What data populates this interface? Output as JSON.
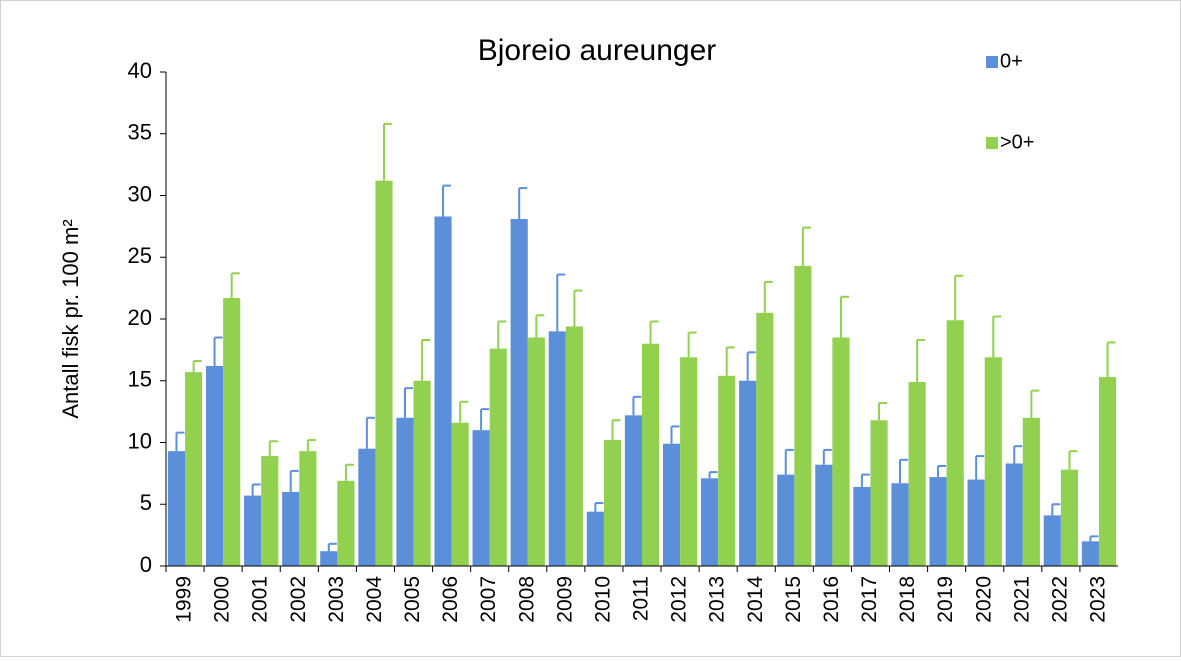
{
  "chart_data": {
    "type": "bar",
    "title": "Bjoreio aureunger",
    "y_label": "Antall fisk pr. 100 m²",
    "categories": [
      "1999",
      "2000",
      "2001",
      "2002",
      "2003",
      "2004",
      "2005",
      "2006",
      "2007",
      "2008",
      "2009",
      "2010",
      "2011",
      "2012",
      "2013",
      "2014",
      "2015",
      "2016",
      "2017",
      "2018",
      "2019",
      "2020",
      "2021",
      "2022",
      "2023"
    ],
    "series": [
      {
        "name": "0+",
        "color": "#5b8fd9",
        "values": [
          9.3,
          16.2,
          5.7,
          6.0,
          1.2,
          9.5,
          12.0,
          28.3,
          11.0,
          28.1,
          19.0,
          4.4,
          12.2,
          9.9,
          7.1,
          15.0,
          7.4,
          8.2,
          6.4,
          6.7,
          7.2,
          7.0,
          8.3,
          4.1,
          2.0
        ],
        "errors": [
          1.5,
          2.3,
          0.9,
          1.7,
          0.6,
          2.5,
          2.4,
          2.5,
          1.7,
          2.5,
          4.6,
          0.7,
          1.5,
          1.4,
          0.5,
          2.3,
          2.0,
          1.2,
          1.0,
          1.9,
          0.9,
          1.9,
          1.4,
          0.9,
          0.4
        ]
      },
      {
        "name": ">0+",
        "color": "#92d050",
        "values": [
          15.7,
          21.7,
          8.9,
          9.3,
          6.9,
          31.2,
          15.0,
          11.6,
          17.6,
          18.5,
          19.4,
          10.2,
          18.0,
          16.9,
          15.4,
          20.5,
          24.3,
          18.5,
          11.8,
          14.9,
          19.9,
          16.9,
          12.0,
          7.8,
          15.3
        ],
        "errors": [
          0.9,
          2.0,
          1.2,
          0.9,
          1.3,
          4.6,
          3.3,
          1.7,
          2.2,
          1.8,
          2.9,
          1.6,
          1.8,
          2.0,
          2.3,
          2.5,
          3.1,
          3.3,
          1.4,
          3.4,
          3.6,
          3.3,
          2.2,
          1.5,
          2.8
        ]
      }
    ],
    "ylim": [
      0,
      40
    ],
    "yticks": [
      0,
      5,
      10,
      15,
      20,
      25,
      30,
      35,
      40
    ],
    "grid": false,
    "legend": "top-right"
  }
}
